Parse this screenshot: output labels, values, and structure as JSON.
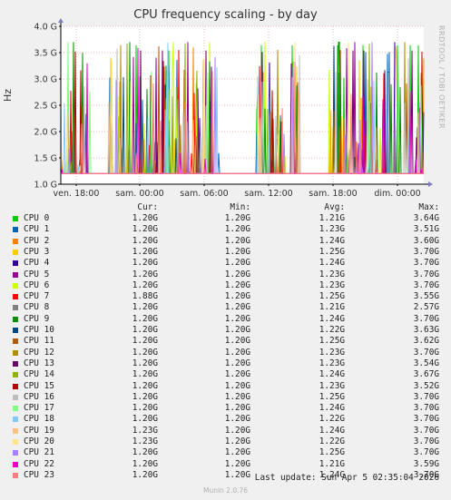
{
  "chart_data": {
    "type": "line",
    "title": "CPU frequency scaling - by day",
    "ylabel": "Hz",
    "ylim": [
      1.0,
      4.0
    ],
    "y_ticks": [
      "1.0 G",
      "1.5 G",
      "2.0 G",
      "2.5 G",
      "3.0 G",
      "3.5 G",
      "4.0 G"
    ],
    "x_ticks": [
      "ven. 18:00",
      "sam. 00:00",
      "sam. 06:00",
      "sam. 12:00",
      "sam. 18:00",
      "dim. 00:00"
    ],
    "grid": true,
    "legend_position": "bottom",
    "series": [
      {
        "name": "CPU 0",
        "color": "#00cc00",
        "cur": "1.20G",
        "min": "1.20G",
        "avg": "1.21G",
        "max": "3.64G"
      },
      {
        "name": "CPU 1",
        "color": "#0066b3",
        "cur": "1.20G",
        "min": "1.20G",
        "avg": "1.23G",
        "max": "3.51G"
      },
      {
        "name": "CPU 2",
        "color": "#ff8000",
        "cur": "1.20G",
        "min": "1.20G",
        "avg": "1.24G",
        "max": "3.60G"
      },
      {
        "name": "CPU 3",
        "color": "#ffcc00",
        "cur": "1.20G",
        "min": "1.20G",
        "avg": "1.25G",
        "max": "3.70G"
      },
      {
        "name": "CPU 4",
        "color": "#330099",
        "cur": "1.20G",
        "min": "1.20G",
        "avg": "1.24G",
        "max": "3.70G"
      },
      {
        "name": "CPU 5",
        "color": "#990099",
        "cur": "1.20G",
        "min": "1.20G",
        "avg": "1.23G",
        "max": "3.70G"
      },
      {
        "name": "CPU 6",
        "color": "#ccff00",
        "cur": "1.20G",
        "min": "1.20G",
        "avg": "1.23G",
        "max": "3.70G"
      },
      {
        "name": "CPU 7",
        "color": "#ff0000",
        "cur": "1.88G",
        "min": "1.20G",
        "avg": "1.25G",
        "max": "3.55G"
      },
      {
        "name": "CPU 8",
        "color": "#808080",
        "cur": "1.20G",
        "min": "1.20G",
        "avg": "1.21G",
        "max": "2.57G"
      },
      {
        "name": "CPU 9",
        "color": "#008f00",
        "cur": "1.20G",
        "min": "1.20G",
        "avg": "1.24G",
        "max": "3.70G"
      },
      {
        "name": "CPU 10",
        "color": "#00487d",
        "cur": "1.20G",
        "min": "1.20G",
        "avg": "1.22G",
        "max": "3.63G"
      },
      {
        "name": "CPU 11",
        "color": "#b35a00",
        "cur": "1.20G",
        "min": "1.20G",
        "avg": "1.25G",
        "max": "3.62G"
      },
      {
        "name": "CPU 12",
        "color": "#b38f00",
        "cur": "1.20G",
        "min": "1.20G",
        "avg": "1.23G",
        "max": "3.70G"
      },
      {
        "name": "CPU 13",
        "color": "#6b006b",
        "cur": "1.20G",
        "min": "1.20G",
        "avg": "1.23G",
        "max": "3.54G"
      },
      {
        "name": "CPU 14",
        "color": "#8fb300",
        "cur": "1.20G",
        "min": "1.20G",
        "avg": "1.24G",
        "max": "3.67G"
      },
      {
        "name": "CPU 15",
        "color": "#b30000",
        "cur": "1.20G",
        "min": "1.20G",
        "avg": "1.23G",
        "max": "3.52G"
      },
      {
        "name": "CPU 16",
        "color": "#bebebe",
        "cur": "1.20G",
        "min": "1.20G",
        "avg": "1.25G",
        "max": "3.70G"
      },
      {
        "name": "CPU 17",
        "color": "#80ff80",
        "cur": "1.20G",
        "min": "1.20G",
        "avg": "1.24G",
        "max": "3.70G"
      },
      {
        "name": "CPU 18",
        "color": "#80c9ff",
        "cur": "1.20G",
        "min": "1.20G",
        "avg": "1.22G",
        "max": "3.70G"
      },
      {
        "name": "CPU 19",
        "color": "#ffc080",
        "cur": "1.23G",
        "min": "1.20G",
        "avg": "1.24G",
        "max": "3.70G"
      },
      {
        "name": "CPU 20",
        "color": "#ffe680",
        "cur": "1.23G",
        "min": "1.20G",
        "avg": "1.22G",
        "max": "3.70G"
      },
      {
        "name": "CPU 21",
        "color": "#aa80ff",
        "cur": "1.20G",
        "min": "1.20G",
        "avg": "1.25G",
        "max": "3.70G"
      },
      {
        "name": "CPU 22",
        "color": "#ee00cc",
        "cur": "1.20G",
        "min": "1.20G",
        "avg": "1.21G",
        "max": "3.59G"
      },
      {
        "name": "CPU 23",
        "color": "#ff8080",
        "cur": "1.20G",
        "min": "1.20G",
        "avg": "1.24G",
        "max": "3.70G"
      }
    ]
  },
  "legend_headers": {
    "cur": "Cur:",
    "min": "Min:",
    "avg": "Avg:",
    "max": "Max:"
  },
  "side_label": "RRDTOOL / TOBI OETIKER",
  "last_update": "Last update: Sun Apr  5 02:35:04 2026",
  "footer": "Munin 2.0.76"
}
